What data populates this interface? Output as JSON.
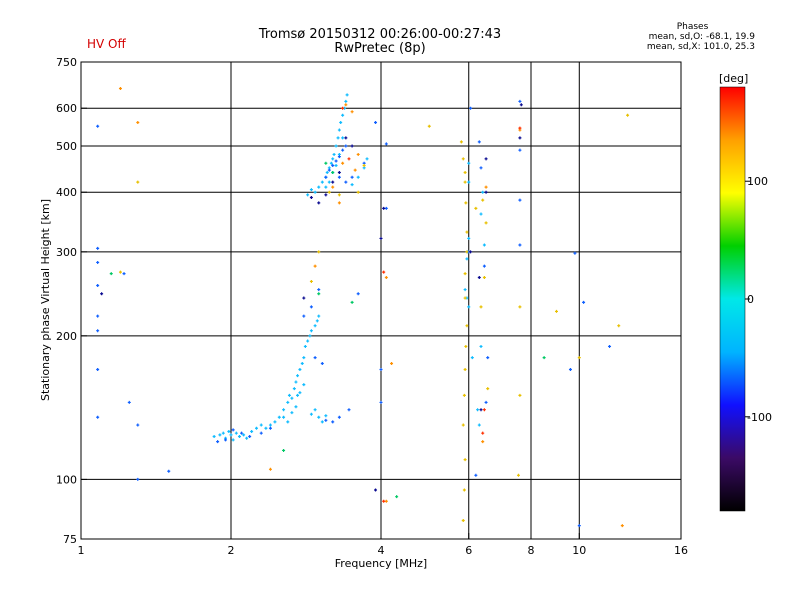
{
  "hv_status": "HV Off",
  "title": {
    "line1": "Tromsø 20150312 00:26:00-00:27:43",
    "line2": "RwPretec (8p)"
  },
  "stats": {
    "header": "Phases",
    "line1": "mean, sd,O: -68.1, 19.9",
    "line2": "mean, sd,X: 101.0, 25.3"
  },
  "chart_data": {
    "type": "scatter",
    "x_scale": "log",
    "y_scale": "log",
    "xlabel": "Frequency [MHz]",
    "ylabel": "Stationary phase Virtual Height [km]",
    "xlim": [
      1,
      16
    ],
    "ylim": [
      75,
      750
    ],
    "x_ticks": [
      1,
      2,
      4,
      6,
      8,
      10,
      16
    ],
    "x_gridlines": [
      2,
      4,
      6,
      8,
      10
    ],
    "y_ticks": [
      75,
      100,
      200,
      300,
      400,
      500,
      600,
      750
    ],
    "y_gridlines": [
      100,
      200,
      300,
      400,
      500,
      600
    ],
    "grid": true,
    "colorbar": {
      "label": "[deg]",
      "range": [
        -180,
        180
      ],
      "ticks": [
        100,
        0,
        -100
      ],
      "stops": [
        "#000000",
        "#3b0a66",
        "#1010ff",
        "#00b4ff",
        "#00e8e8",
        "#00d000",
        "#ffff00",
        "#ffa000",
        "#ff0000"
      ]
    },
    "point_groups": [
      {
        "phase": -30,
        "color": "#10bcff",
        "points": [
          [
            1.85,
            123
          ],
          [
            1.9,
            124
          ],
          [
            1.93,
            125
          ],
          [
            1.95,
            122
          ],
          [
            1.98,
            126
          ],
          [
            2.0,
            124
          ],
          [
            2.02,
            121
          ],
          [
            2.05,
            125
          ],
          [
            2.08,
            123
          ],
          [
            2.12,
            124
          ],
          [
            2.15,
            122
          ],
          [
            2.2,
            126
          ],
          [
            2.25,
            128
          ],
          [
            2.3,
            130
          ],
          [
            2.35,
            128
          ],
          [
            2.4,
            130
          ],
          [
            2.45,
            132
          ],
          [
            2.5,
            135
          ],
          [
            2.55,
            140
          ],
          [
            2.6,
            145
          ],
          [
            2.62,
            150
          ],
          [
            2.65,
            148
          ],
          [
            2.68,
            155
          ],
          [
            2.7,
            160
          ],
          [
            2.72,
            165
          ],
          [
            2.75,
            170
          ],
          [
            2.78,
            175
          ],
          [
            2.8,
            180
          ],
          [
            2.82,
            190
          ],
          [
            2.85,
            195
          ],
          [
            2.88,
            200
          ],
          [
            2.9,
            205
          ],
          [
            2.95,
            210
          ],
          [
            2.98,
            215
          ],
          [
            3.0,
            220
          ],
          [
            2.55,
            135
          ],
          [
            2.6,
            132
          ],
          [
            2.65,
            138
          ],
          [
            2.7,
            142
          ],
          [
            2.72,
            150
          ],
          [
            2.75,
            152
          ],
          [
            2.8,
            158
          ],
          [
            2.9,
            137
          ],
          [
            2.95,
            140
          ],
          [
            3.0,
            135
          ],
          [
            3.05,
            132
          ],
          [
            3.1,
            136
          ],
          [
            2.85,
            395
          ],
          [
            2.9,
            405
          ],
          [
            2.95,
            400
          ],
          [
            3.0,
            410
          ],
          [
            3.05,
            420
          ],
          [
            3.1,
            430
          ],
          [
            3.12,
            440
          ],
          [
            3.15,
            450
          ],
          [
            3.18,
            460
          ],
          [
            3.2,
            470
          ],
          [
            3.22,
            480
          ],
          [
            3.25,
            500
          ],
          [
            3.28,
            520
          ],
          [
            3.3,
            540
          ],
          [
            3.32,
            560
          ],
          [
            3.35,
            580
          ],
          [
            3.38,
            600
          ],
          [
            3.4,
            620
          ],
          [
            3.42,
            640
          ],
          [
            3.35,
            520
          ],
          [
            3.3,
            480
          ],
          [
            3.25,
            455
          ],
          [
            3.2,
            440
          ],
          [
            3.15,
            420
          ],
          [
            3.1,
            410
          ],
          [
            3.5,
            415
          ],
          [
            3.6,
            430
          ],
          [
            3.7,
            450
          ],
          [
            3.75,
            470
          ],
          [
            5.95,
            290
          ],
          [
            5.98,
            300
          ],
          [
            6.0,
            320
          ],
          [
            5.9,
            250
          ],
          [
            5.95,
            240
          ],
          [
            6.0,
            230
          ],
          [
            6.1,
            180
          ],
          [
            6.25,
            140
          ],
          [
            6.3,
            130
          ],
          [
            6.35,
            190
          ],
          [
            6.0,
            420
          ],
          [
            6.0,
            460
          ],
          [
            6.4,
            400
          ],
          [
            6.35,
            360
          ],
          [
            6.45,
            310
          ]
        ]
      },
      {
        "phase": -80,
        "color": "#1060ff",
        "points": [
          [
            1.08,
            550
          ],
          [
            1.08,
            305
          ],
          [
            1.08,
            285
          ],
          [
            1.08,
            255
          ],
          [
            1.08,
            220
          ],
          [
            1.08,
            205
          ],
          [
            1.08,
            170
          ],
          [
            1.08,
            135
          ],
          [
            1.22,
            270
          ],
          [
            1.25,
            145
          ],
          [
            1.3,
            130
          ],
          [
            1.3,
            100
          ],
          [
            1.5,
            104
          ],
          [
            1.88,
            120
          ],
          [
            1.95,
            121
          ],
          [
            2.02,
            127
          ],
          [
            2.1,
            125
          ],
          [
            2.18,
            123
          ],
          [
            2.3,
            125
          ],
          [
            2.4,
            128
          ],
          [
            2.8,
            220
          ],
          [
            2.9,
            230
          ],
          [
            3.0,
            250
          ],
          [
            2.95,
            180
          ],
          [
            3.05,
            175
          ],
          [
            3.1,
            133
          ],
          [
            3.2,
            132
          ],
          [
            3.3,
            135
          ],
          [
            3.1,
            430
          ],
          [
            3.15,
            445
          ],
          [
            3.2,
            455
          ],
          [
            3.25,
            465
          ],
          [
            3.3,
            475
          ],
          [
            3.35,
            490
          ],
          [
            3.4,
            500
          ],
          [
            3.3,
            430
          ],
          [
            3.4,
            420
          ],
          [
            3.5,
            430
          ],
          [
            3.7,
            460
          ],
          [
            3.45,
            140
          ],
          [
            3.6,
            245
          ],
          [
            3.9,
            560
          ],
          [
            4.0,
            170
          ],
          [
            4.0,
            145
          ],
          [
            4.1,
            505
          ],
          [
            4.1,
            370
          ],
          [
            6.0,
            300
          ],
          [
            6.05,
            600
          ],
          [
            6.2,
            102
          ],
          [
            6.3,
            510
          ],
          [
            6.35,
            450
          ],
          [
            6.45,
            280
          ],
          [
            6.5,
            145
          ],
          [
            6.55,
            180
          ],
          [
            7.6,
            620
          ],
          [
            7.6,
            490
          ],
          [
            7.6,
            385
          ],
          [
            7.6,
            310
          ],
          [
            9.6,
            170
          ],
          [
            9.8,
            298
          ],
          [
            10.0,
            80
          ],
          [
            10.2,
            235
          ],
          [
            11.5,
            190
          ]
        ]
      },
      {
        "phase": -130,
        "color": "#0a0a90",
        "points": [
          [
            1.1,
            245
          ],
          [
            2.8,
            240
          ],
          [
            2.9,
            390
          ],
          [
            3.0,
            380
          ],
          [
            3.1,
            395
          ],
          [
            3.2,
            420
          ],
          [
            3.3,
            440
          ],
          [
            3.4,
            520
          ],
          [
            3.5,
            500
          ],
          [
            3.9,
            95
          ],
          [
            4.0,
            320
          ],
          [
            4.05,
            370
          ],
          [
            6.05,
            300
          ],
          [
            6.3,
            265
          ],
          [
            6.35,
            140
          ],
          [
            6.5,
            470
          ],
          [
            6.5,
            400
          ],
          [
            7.6,
            520
          ],
          [
            7.65,
            610
          ]
        ]
      },
      {
        "phase": 0,
        "color": "#00c864",
        "points": [
          [
            1.15,
            270
          ],
          [
            2.55,
            115
          ],
          [
            3.0,
            245
          ],
          [
            3.1,
            460
          ],
          [
            3.2,
            440
          ],
          [
            3.5,
            235
          ],
          [
            4.3,
            92
          ],
          [
            8.5,
            180
          ]
        ]
      },
      {
        "phase": 140,
        "color": "#ff9000",
        "points": [
          [
            1.2,
            660
          ],
          [
            1.3,
            560
          ],
          [
            2.4,
            105
          ],
          [
            2.95,
            280
          ],
          [
            3.2,
            410
          ],
          [
            3.3,
            380
          ],
          [
            3.35,
            460
          ],
          [
            3.4,
            610
          ],
          [
            3.5,
            590
          ],
          [
            3.55,
            445
          ],
          [
            3.6,
            480
          ],
          [
            4.1,
            90
          ],
          [
            4.1,
            265
          ],
          [
            4.2,
            175
          ],
          [
            6.4,
            120
          ],
          [
            6.5,
            410
          ],
          [
            7.6,
            540
          ],
          [
            12.2,
            80
          ]
        ]
      },
      {
        "phase": 90,
        "color": "#e8c000",
        "points": [
          [
            1.2,
            272
          ],
          [
            1.3,
            420
          ],
          [
            2.9,
            260
          ],
          [
            3.0,
            300
          ],
          [
            3.15,
            400
          ],
          [
            3.3,
            395
          ],
          [
            3.6,
            400
          ],
          [
            3.7,
            455
          ],
          [
            5.0,
            550
          ],
          [
            5.8,
            510
          ],
          [
            5.85,
            470
          ],
          [
            5.9,
            440
          ],
          [
            5.9,
            420
          ],
          [
            5.92,
            380
          ],
          [
            5.95,
            330
          ],
          [
            5.95,
            300
          ],
          [
            5.9,
            270
          ],
          [
            5.9,
            240
          ],
          [
            5.95,
            210
          ],
          [
            5.92,
            190
          ],
          [
            5.9,
            170
          ],
          [
            5.88,
            150
          ],
          [
            5.85,
            130
          ],
          [
            5.9,
            110
          ],
          [
            5.88,
            95
          ],
          [
            5.85,
            82
          ],
          [
            6.2,
            370
          ],
          [
            6.4,
            385
          ],
          [
            6.5,
            345
          ],
          [
            6.45,
            265
          ],
          [
            6.35,
            230
          ],
          [
            6.55,
            155
          ],
          [
            7.6,
            230
          ],
          [
            7.6,
            150
          ],
          [
            7.55,
            102
          ],
          [
            9.0,
            225
          ],
          [
            10.0,
            180
          ],
          [
            12.0,
            210
          ],
          [
            12.5,
            580
          ]
        ]
      },
      {
        "phase": 165,
        "color": "#ff3000",
        "points": [
          [
            3.35,
            600
          ],
          [
            3.45,
            470
          ],
          [
            4.05,
            272
          ],
          [
            4.05,
            90
          ],
          [
            6.4,
            125
          ],
          [
            6.45,
            140
          ],
          [
            7.6,
            545
          ]
        ]
      }
    ]
  }
}
